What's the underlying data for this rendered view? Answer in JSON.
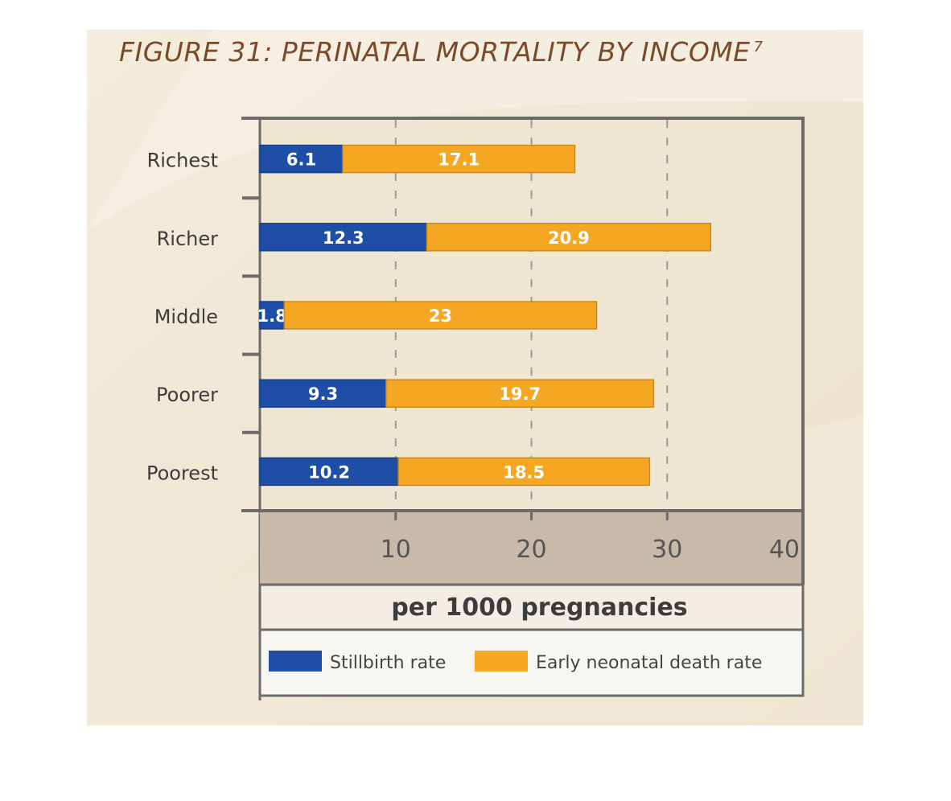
{
  "figure": {
    "title": "FIGURE 31: PERINATAL MORTALITY BY INCOME",
    "footnote": "7"
  },
  "colors": {
    "stillbirth": "#1f4ea6",
    "neonatal": "#f5a623",
    "axis": "#6b6b6b",
    "axis_band": "#c9b9a8",
    "title": "#7a4a2a"
  },
  "chart_data": {
    "type": "bar",
    "orientation": "horizontal",
    "stacked": true,
    "categories": [
      "Richest",
      "Richer",
      "Middle",
      "Poorer",
      "Poorest"
    ],
    "series": [
      {
        "name": "Stillbirth rate",
        "values": [
          6.1,
          12.3,
          1.8,
          9.3,
          10.2
        ],
        "labels": [
          "6.1",
          "12.3",
          "1.8",
          "9.3",
          "10.2"
        ]
      },
      {
        "name": "Early neonatal death rate",
        "values": [
          17.1,
          20.9,
          23,
          19.7,
          18.5
        ],
        "labels": [
          "17.1",
          "20.9",
          "23",
          "19.7",
          "18.5"
        ]
      }
    ],
    "xlim": [
      0,
      40
    ],
    "xticks": [
      10,
      20,
      30,
      40
    ],
    "xlabel": "per 1000 pregnancies",
    "legend_position": "bottom",
    "grid": "dashed vertical"
  }
}
